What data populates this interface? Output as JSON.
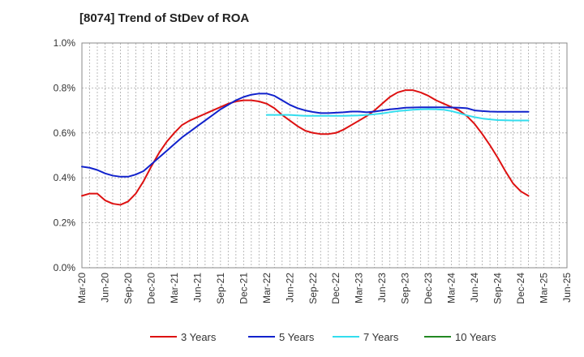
{
  "chart_data": {
    "type": "line",
    "title": "[8074]  Trend of StDev of ROA",
    "y_ticks": [
      "0.0%",
      "0.2%",
      "0.4%",
      "0.6%",
      "0.8%",
      "1.0%"
    ],
    "ylim": [
      0,
      1.0
    ],
    "x_ticks": [
      "Mar-20",
      "Jun-20",
      "Sep-20",
      "Dec-20",
      "Mar-21",
      "Jun-21",
      "Sep-21",
      "Dec-21",
      "Mar-22",
      "Jun-22",
      "Sep-22",
      "Dec-22",
      "Mar-23",
      "Jun-23",
      "Sep-23",
      "Dec-23",
      "Mar-24",
      "Jun-24",
      "Sep-24",
      "Dec-24",
      "Mar-25",
      "Jun-25"
    ],
    "grid": true,
    "legend_position": "bottom",
    "series": [
      {
        "name": "3 Years",
        "color": "#dd1111",
        "start_index": 0,
        "values": [
          0.32,
          0.33,
          0.33,
          0.3,
          0.285,
          0.28,
          0.295,
          0.33,
          0.385,
          0.45,
          0.51,
          0.56,
          0.6,
          0.635,
          0.655,
          0.67,
          0.685,
          0.7,
          0.715,
          0.73,
          0.74,
          0.745,
          0.745,
          0.74,
          0.73,
          0.71,
          0.68,
          0.655,
          0.63,
          0.61,
          0.6,
          0.595,
          0.595,
          0.6,
          0.615,
          0.635,
          0.655,
          0.675,
          0.7,
          0.73,
          0.76,
          0.78,
          0.79,
          0.79,
          0.78,
          0.765,
          0.745,
          0.73,
          0.715,
          0.7,
          0.675,
          0.64,
          0.595,
          0.545,
          0.49,
          0.43,
          0.375,
          0.34,
          0.32
        ]
      },
      {
        "name": "5 Years",
        "color": "#1122cc",
        "start_index": 0,
        "values": [
          0.45,
          0.445,
          0.435,
          0.42,
          0.41,
          0.405,
          0.405,
          0.415,
          0.43,
          0.46,
          0.49,
          0.52,
          0.55,
          0.58,
          0.605,
          0.63,
          0.655,
          0.68,
          0.705,
          0.725,
          0.745,
          0.76,
          0.77,
          0.775,
          0.775,
          0.765,
          0.745,
          0.725,
          0.71,
          0.7,
          0.693,
          0.688,
          0.688,
          0.69,
          0.692,
          0.695,
          0.695,
          0.692,
          0.695,
          0.7,
          0.705,
          0.708,
          0.712,
          0.713,
          0.714,
          0.714,
          0.714,
          0.714,
          0.713,
          0.712,
          0.71,
          0.7,
          0.697,
          0.695,
          0.694,
          0.694,
          0.694,
          0.694,
          0.694
        ]
      },
      {
        "name": "7 Years",
        "color": "#33ddee",
        "start_index": 24,
        "values": [
          0.68,
          0.68,
          0.68,
          0.68,
          0.678,
          0.676,
          0.676,
          0.676,
          0.676,
          0.676,
          0.676,
          0.677,
          0.678,
          0.68,
          0.683,
          0.687,
          0.692,
          0.697,
          0.7,
          0.703,
          0.705,
          0.706,
          0.705,
          0.703,
          0.697,
          0.688,
          0.678,
          0.67,
          0.664,
          0.66,
          0.657,
          0.656,
          0.655,
          0.655,
          0.655
        ]
      },
      {
        "name": "10 Years",
        "color": "#228822",
        "start_index": 0,
        "values": []
      }
    ]
  }
}
